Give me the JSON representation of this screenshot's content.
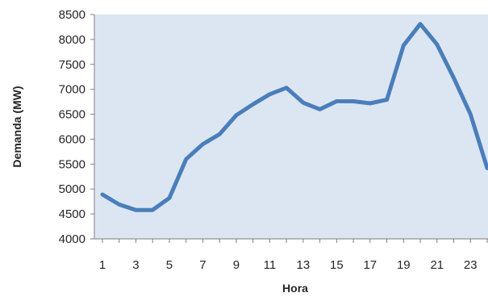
{
  "chart_data": {
    "type": "line",
    "title": "",
    "xlabel": "Hora",
    "ylabel": "Demanda (MW)",
    "x": [
      1,
      2,
      3,
      4,
      5,
      6,
      7,
      8,
      9,
      10,
      11,
      12,
      13,
      14,
      15,
      16,
      17,
      18,
      19,
      20,
      21,
      22,
      23,
      24
    ],
    "xticks": [
      "1",
      "3",
      "5",
      "7",
      "9",
      "11",
      "13",
      "15",
      "17",
      "19",
      "21",
      "23"
    ],
    "yticks": [
      "4000",
      "4500",
      "5000",
      "5500",
      "6000",
      "6500",
      "7000",
      "7500",
      "8000",
      "8500"
    ],
    "ylim": [
      4000,
      8500
    ],
    "xlim": [
      0.5,
      24
    ],
    "grid": false,
    "legend": "none",
    "series": [
      {
        "values": [
          4890,
          4690,
          4580,
          4580,
          4820,
          5600,
          5900,
          6100,
          6480,
          6700,
          6900,
          7030,
          6730,
          6600,
          6760,
          6760,
          6720,
          6790,
          7880,
          8310,
          7900,
          7230,
          6500,
          5420
        ],
        "color": "#4a7ebb"
      }
    ],
    "plot_background": "#dce6f2"
  }
}
